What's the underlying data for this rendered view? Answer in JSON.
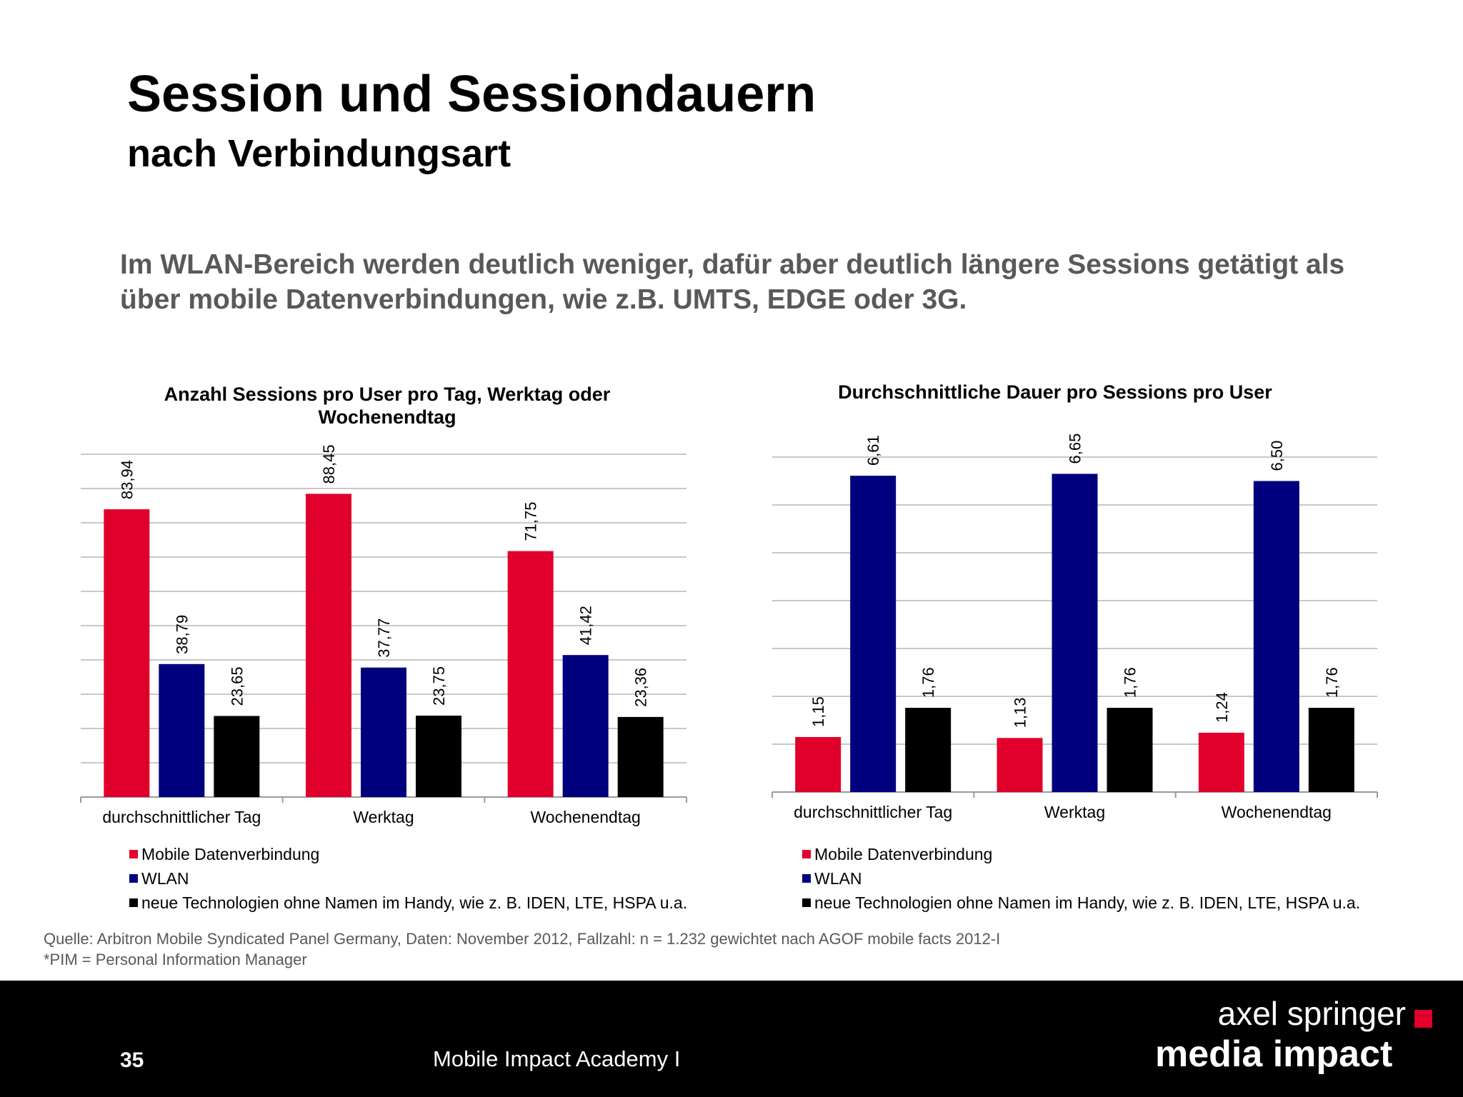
{
  "slide": {
    "title": "Session und Sessiondauern",
    "subtitle": "nach Verbindungsart",
    "lead_line1": "Im WLAN-Bereich werden deutlich weniger, dafür aber deutlich längere Sessions getätigt als",
    "lead_line2": "über mobile Datenverbindungen, wie z.B. UMTS, EDGE oder 3G.",
    "source_line1": "Quelle: Arbitron Mobile Syndicated Panel Germany, Daten: November 2012, Fallzahl: n = 1.232 gewichtet nach AGOF mobile facts 2012-I",
    "source_line2": "*PIM = Personal Information Manager",
    "page_number": "35",
    "footer_text": "Mobile Impact Academy I",
    "logo_line1": "axel springer",
    "logo_line2": "media impact"
  },
  "colors": {
    "mobile": "#e0002b",
    "wlan": "#00007e",
    "neue": "#000000",
    "grid": "#c8c8c8",
    "axis": "#9a9a9a"
  },
  "chart_data": [
    {
      "type": "bar",
      "title": "Anzahl Sessions pro User pro Tag, Werktag oder Wochenendtag",
      "title_line1": "Anzahl Sessions pro User pro Tag, Werktag oder",
      "title_line2": "Wochenendtag",
      "categories": [
        "durchschnittlicher Tag",
        "Werktag",
        "Wochenendtag"
      ],
      "series": [
        {
          "name": "Mobile Datenverbindung",
          "values": [
            83.94,
            88.45,
            71.75
          ],
          "labels": [
            "83,94",
            "88,45",
            "71,75"
          ]
        },
        {
          "name": "WLAN",
          "values": [
            38.79,
            37.77,
            41.42
          ],
          "labels": [
            "38,79",
            "37,77",
            "41,42"
          ]
        },
        {
          "name": "neue Technologien ohne Namen im Handy, wie z. B. IDEN, LTE, HSPA u.a.",
          "values": [
            23.65,
            23.75,
            23.36
          ],
          "labels": [
            "23,65",
            "23,75",
            "23,36"
          ]
        }
      ],
      "ylim": [
        0,
        100
      ],
      "ytick_step": 10,
      "grid": true,
      "legend": "bottom-left"
    },
    {
      "type": "bar",
      "title": "Durchschnittliche Dauer pro Sessions pro User",
      "categories": [
        "durchschnittlicher Tag",
        "Werktag",
        "Wochenendtag"
      ],
      "series": [
        {
          "name": "Mobile Datenverbindung",
          "values": [
            1.15,
            1.13,
            1.24
          ],
          "labels": [
            "1,15",
            "1,13",
            "1,24"
          ]
        },
        {
          "name": "WLAN",
          "values": [
            6.61,
            6.65,
            6.5
          ],
          "labels": [
            "6,61",
            "6,65",
            "6,50"
          ]
        },
        {
          "name": "neue Technologien ohne Namen im Handy, wie z. B. IDEN, LTE, HSPA u.a.",
          "values": [
            1.76,
            1.76,
            1.76
          ],
          "labels": [
            "1,76",
            "1,76",
            "1,76"
          ]
        }
      ],
      "ylim": [
        0,
        7
      ],
      "ytick_step": 1,
      "grid": true,
      "legend": "bottom-left"
    }
  ]
}
